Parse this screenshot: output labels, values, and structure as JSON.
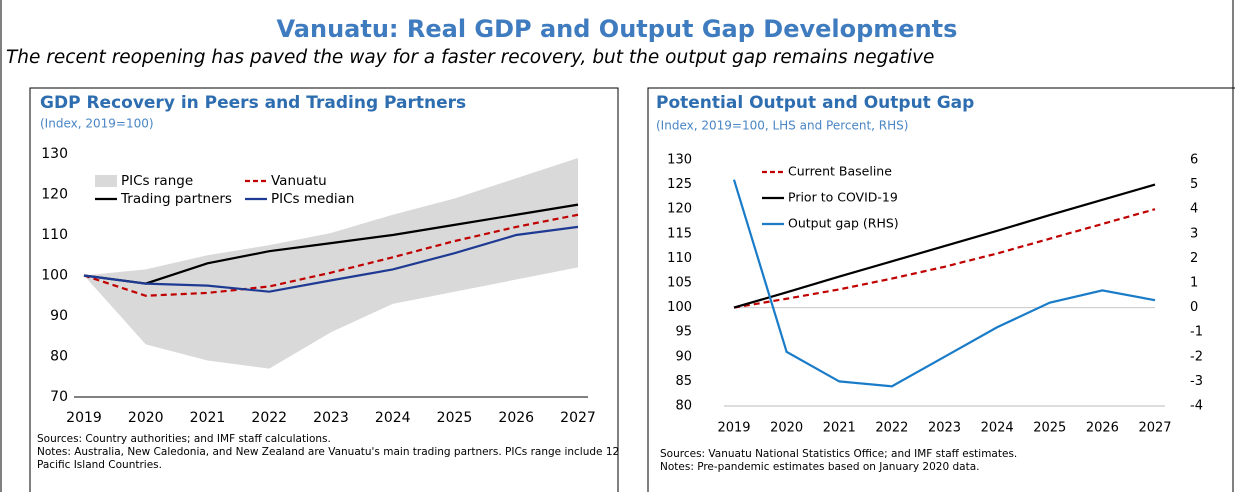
{
  "title": "Vanuatu: Real GDP and Output Gap Developments",
  "subtitle": "The recent reopening has paved the way for a faster recovery, but the output gap remains negative",
  "chart_data": [
    {
      "type": "line",
      "title": "GDP Recovery in Peers and Trading Partners",
      "subtitle": "(Index, 2019=100)",
      "categories": [
        "2019",
        "2020",
        "2021",
        "2022",
        "2023",
        "2024",
        "2025",
        "2026",
        "2027"
      ],
      "series": [
        {
          "name": "PICs range",
          "color": "#d9d9d9",
          "low": [
            100,
            83,
            79,
            77,
            86,
            93,
            96,
            99,
            102
          ],
          "high": [
            100,
            101.5,
            105,
            107.5,
            110.5,
            115,
            119,
            124,
            129
          ]
        },
        {
          "name": "Vanuatu",
          "color": "#c00000",
          "dashed": true,
          "values": [
            100,
            95,
            95.7,
            97.3,
            100.7,
            104.5,
            108.5,
            112,
            115
          ]
        },
        {
          "name": "Trading partners",
          "color": "#000000",
          "values": [
            100,
            98,
            103,
            106,
            108,
            110,
            112.5,
            115,
            117.5
          ]
        },
        {
          "name": "PICs median",
          "color": "#1f3a93",
          "values": [
            100,
            98,
            97.5,
            96,
            98.8,
            101.5,
            105.5,
            110,
            112
          ]
        }
      ],
      "ylim": [
        70,
        130
      ],
      "yticks": [
        70,
        80,
        90,
        100,
        110,
        120,
        130
      ],
      "legend": "upper left",
      "sources": "Sources: Country authorities; and IMF staff calculations.",
      "notes": "Notes: Australia, New Caledonia, and New Zealand are Vanuatu's main trading partners. PICs range include 12 Pacific Island Countries."
    },
    {
      "type": "line",
      "title": "Potential Output and Output Gap",
      "subtitle": "(Index, 2019=100, LHS and Percent, RHS)",
      "categories": [
        "2019",
        "2020",
        "2021",
        "2022",
        "2023",
        "2024",
        "2025",
        "2026",
        "2027"
      ],
      "series": [
        {
          "name": "Current Baseline",
          "color": "#c00000",
          "dashed": true,
          "values": [
            100,
            101.8,
            103.7,
            105.9,
            108.3,
            111,
            114,
            117,
            120
          ]
        },
        {
          "name": "Prior to COVID-19",
          "color": "#000000",
          "values": [
            100,
            103.1,
            106.3,
            109.4,
            112.5,
            115.6,
            118.8,
            121.9,
            125
          ]
        },
        {
          "name": "Output gap (RHS)",
          "color": "#1a7cc8",
          "axis": "y2",
          "values": [
            5.2,
            -1.8,
            -3.0,
            -3.2,
            -2.0,
            -0.8,
            0.2,
            0.7,
            0.3
          ]
        }
      ],
      "ylim": [
        80,
        130
      ],
      "yticks": [
        80,
        85,
        90,
        95,
        100,
        105,
        110,
        115,
        120,
        125,
        130
      ],
      "y2lim": [
        -4,
        6
      ],
      "y2ticks": [
        -4,
        -3,
        -2,
        -1,
        0,
        1,
        2,
        3,
        4,
        5,
        6
      ],
      "legend": "upper left",
      "sources": "Sources: Vanuatu National Statistics Office; and IMF staff estimates.",
      "notes": "Notes: Pre-pandemic estimates based on January 2020 data."
    }
  ]
}
